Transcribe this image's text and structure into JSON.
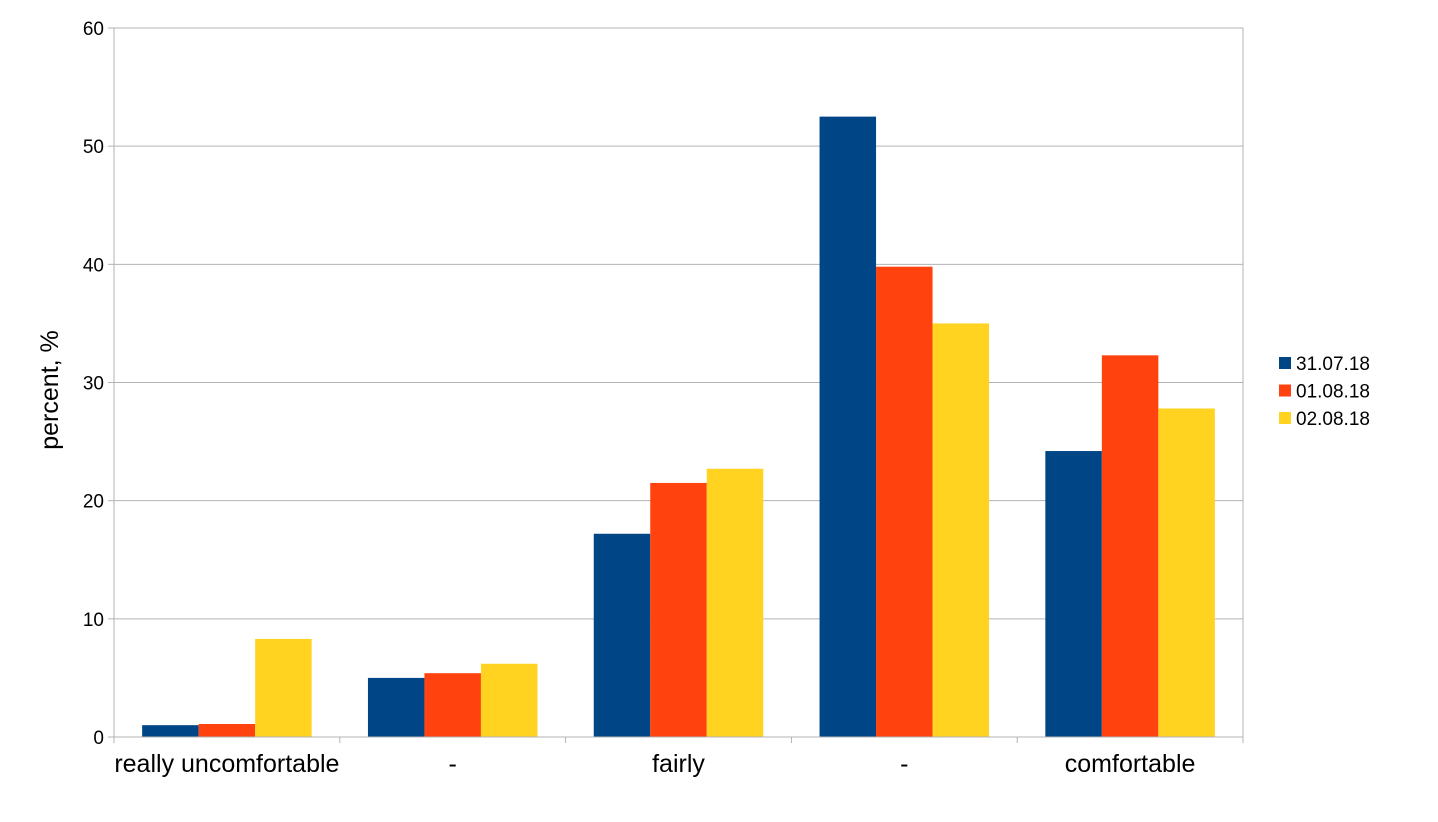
{
  "chart_data": {
    "type": "bar",
    "title": "",
    "xlabel": "",
    "ylabel": "percent, %",
    "ylim": [
      0,
      60
    ],
    "yticks": [
      0,
      10,
      20,
      30,
      40,
      50,
      60
    ],
    "categories": [
      "really uncomfortable",
      "-",
      "fairly",
      "-",
      "comfortable"
    ],
    "series": [
      {
        "name": "31.07.18",
        "color": "#004586",
        "values": [
          1.0,
          5.0,
          17.2,
          52.5,
          24.2
        ]
      },
      {
        "name": "01.08.18",
        "color": "#ff420e",
        "values": [
          1.1,
          5.4,
          21.5,
          39.8,
          32.3
        ]
      },
      {
        "name": "02.08.18",
        "color": "#ffd320",
        "values": [
          8.3,
          6.2,
          22.7,
          35.0,
          27.8
        ]
      }
    ],
    "grid": true,
    "legend_position": "right"
  }
}
